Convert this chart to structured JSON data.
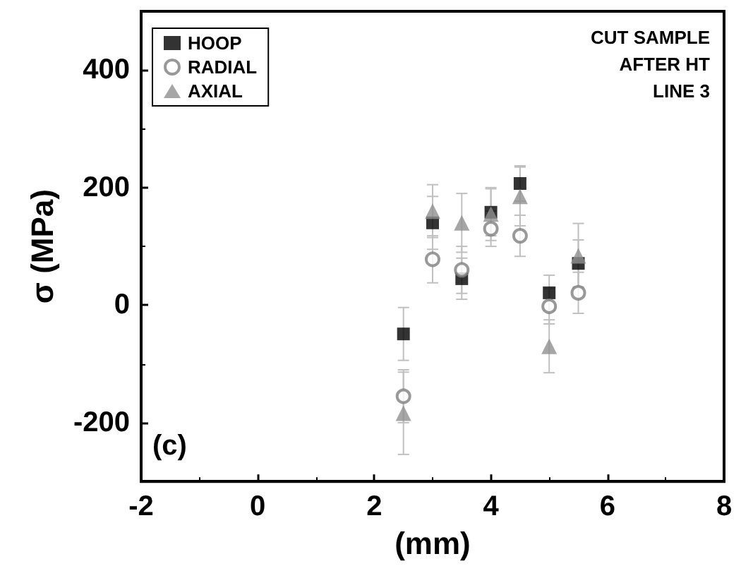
{
  "chart_data": {
    "type": "scatter",
    "xlabel": "(mm)",
    "ylabel": "σ (MPa)",
    "x": [
      2.5,
      3,
      3.5,
      4,
      4.5,
      5,
      5.5
    ],
    "series": [
      {
        "name": "HOOP",
        "color": "#000000",
        "marker": "square",
        "values": [
          -49,
          140,
          45,
          158,
          207,
          21,
          71
        ],
        "errors": [
          45,
          45,
          35,
          40,
          30,
          30,
          40
        ]
      },
      {
        "name": "RADIAL",
        "color": "#808080",
        "marker": "circle",
        "values": [
          -155,
          78,
          60,
          130,
          118,
          -2,
          21
        ],
        "errors": [
          45,
          40,
          40,
          30,
          35,
          30,
          35
        ]
      },
      {
        "name": "AXIAL",
        "color": "#909090",
        "marker": "triangle",
        "values": [
          -184,
          160,
          140,
          155,
          185,
          -70,
          84
        ],
        "errors": [
          70,
          45,
          50,
          45,
          50,
          45,
          55
        ]
      }
    ],
    "xlim": [
      -2,
      8
    ],
    "xticks": [
      -2,
      0,
      2,
      4,
      6,
      8
    ],
    "ylim": [
      -300,
      500
    ],
    "yticks": [
      -200,
      0,
      200,
      400
    ],
    "legend": "top left",
    "grid": false,
    "annotations": [
      "CUT SAMPLE",
      "AFTER HT",
      "LINE 3",
      "(c)"
    ]
  }
}
